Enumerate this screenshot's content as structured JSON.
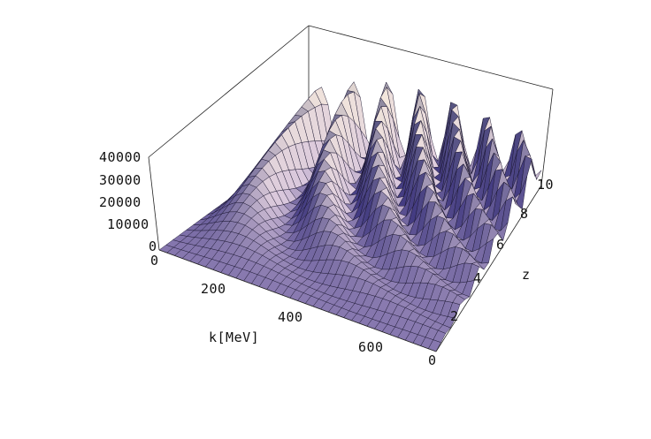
{
  "chart_data": {
    "type": "surface3d",
    "title": "",
    "xlabel": "k[MeV]",
    "ylabel": "z",
    "zlabel": "",
    "xlim": [
      0,
      700
    ],
    "ylim": [
      0,
      11
    ],
    "zlim": [
      0,
      40000
    ],
    "x_ticks": [
      "200",
      "400",
      "600"
    ],
    "y_ticks": [
      "0",
      "2",
      "4",
      "6",
      "8",
      "10"
    ],
    "z_ticks": [
      "0",
      "10000",
      "20000",
      "30000",
      "40000"
    ],
    "x_zero_label": "0",
    "box": true,
    "mesh": true,
    "surface_description_values": {
      "peak_envelope_by_z": [
        {
          "z": 0,
          "max_value": 0
        },
        {
          "z": 2,
          "max_value": 9000
        },
        {
          "z": 4,
          "max_value": 17000
        },
        {
          "z": 6,
          "max_value": 24000
        },
        {
          "z": 8,
          "max_value": 31000
        },
        {
          "z": 10,
          "max_value": 38000
        }
      ]
    },
    "colors": {
      "low": "#8c86c8",
      "mid": "#7a72c0",
      "high": "#f5e6b8",
      "dark": "#3a2f6e"
    }
  }
}
